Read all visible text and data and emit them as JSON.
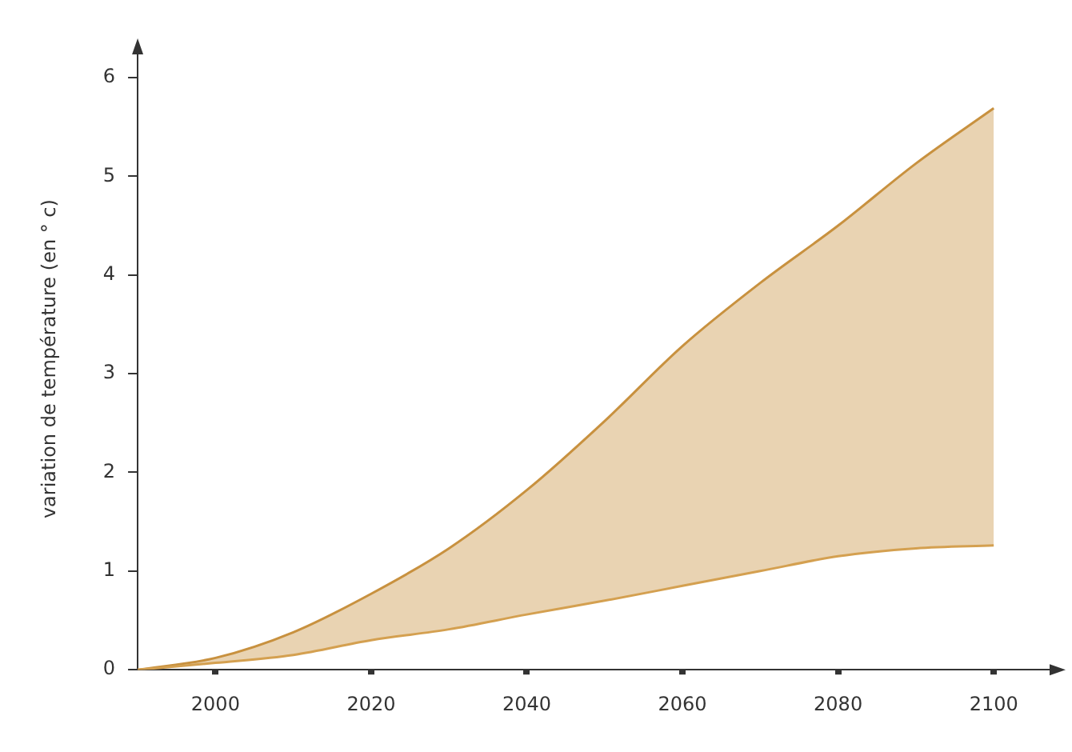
{
  "chart_data": {
    "type": "area",
    "ylabel": "variation de température (en ° c)",
    "x": [
      1990,
      2000,
      2010,
      2020,
      2030,
      2040,
      2050,
      2060,
      2070,
      2080,
      2090,
      2100
    ],
    "series": [
      {
        "type": "line",
        "color": "#d4a050",
        "values": [
          0,
          0.07,
          0.15,
          0.3,
          0.41,
          0.56,
          0.7,
          0.85,
          1.0,
          1.15,
          1.23,
          1.26
        ]
      },
      {
        "type": "area",
        "color": "#c8913f",
        "values": [
          0,
          0.12,
          0.38,
          0.77,
          1.23,
          1.82,
          2.52,
          3.28,
          3.92,
          4.5,
          5.13,
          5.69
        ]
      }
    ],
    "xlim": [
      1990,
      2108
    ],
    "xticks": [
      2000,
      2020,
      2040,
      2060,
      2080,
      2100
    ],
    "ylim": [
      0,
      6.3
    ],
    "yticks": [
      0,
      1,
      2,
      3,
      4,
      5,
      6
    ],
    "grid": false,
    "legend": false,
    "marker": "none"
  }
}
